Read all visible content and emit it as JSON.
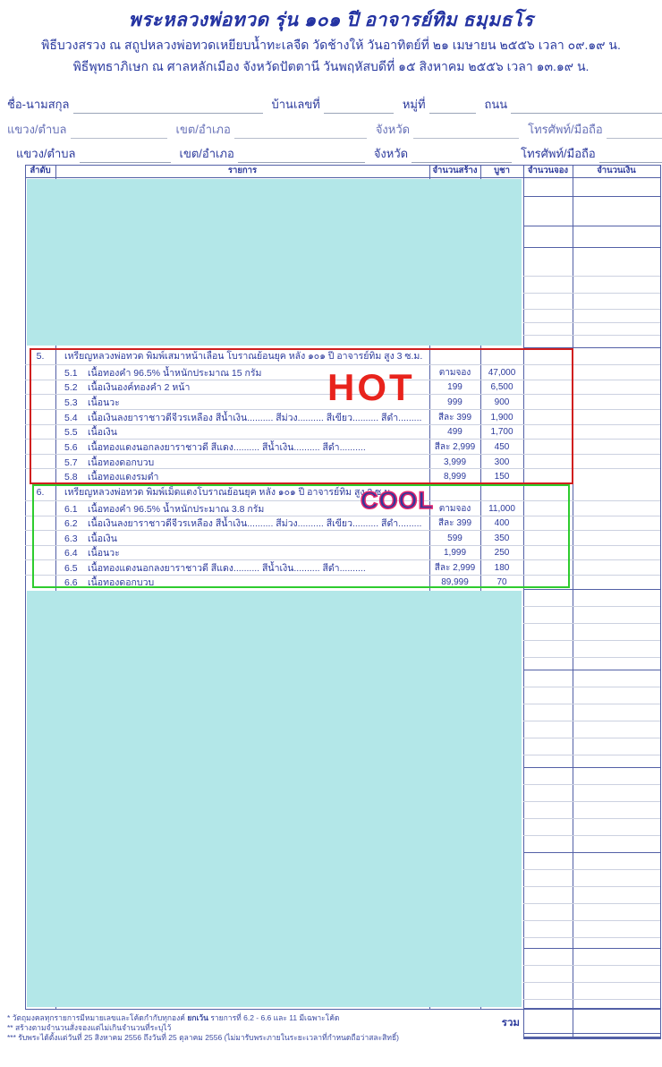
{
  "header": {
    "title": "พระหลวงพ่อทวด รุ่น ๑๐๑ ปี อาจารย์ทิม ธมฺมธโร",
    "ceremony1": "พิธีบวงสรวง ณ สถูปหลวงพ่อทวดเหยียบน้ำทะเลจืด วัดช้างให้   วันอาทิตย์ที่ ๒๑ เมษายน ๒๕๕๖  เวลา ๐๙.๑๙ น.",
    "ceremony2": "พิธีพุทธาภิเษก ณ ศาลหลักเมือง จังหวัดปัตตานี   วันพฤหัสบดีที่ ๑๕ สิงหาคม ๒๕๕๖  เวลา ๑๓.๑๙ น."
  },
  "form": {
    "row1": [
      "ชื่อ-นามสกุล",
      "บ้านเลขที่",
      "หมู่ที่",
      "ถนน"
    ],
    "row2": [
      "แขวง/ตำบล",
      "เขต/อำเภอ",
      "จังหวัด",
      "โทรศัพท์/มือถือ"
    ],
    "row3": [
      "แขวง/ตำบล",
      "เขต/อำเภอ",
      "จังหวัด",
      "โทรศัพท์/มือถือ"
    ]
  },
  "table": {
    "columns": [
      "ลำดับ",
      "รายการ",
      "จำนวนสร้าง",
      "บูชา",
      "จำนวนจอง",
      "จำนวนเงิน"
    ],
    "sections": [
      {
        "no": "5.",
        "title": "เหรียญหลวงพ่อทวด พิมพ์เสมาหน้าเลื่อน โบราณย้อนยุค หลัง ๑๐๑ ปี อาจารย์ทิม สูง 3 ซ.ม.",
        "badge": "HOT",
        "items": [
          {
            "no": "5.1",
            "desc": "เนื้อทองคำ 96.5% น้ำหนักประมาณ 15 กรัม",
            "made": "ตามจอง",
            "price": "47,000"
          },
          {
            "no": "5.2",
            "desc": "เนื้อเงินองค์ทองคำ 2 หน้า",
            "made": "199",
            "price": "6,500"
          },
          {
            "no": "5.3",
            "desc": "เนื้อนวะ",
            "made": "999",
            "price": "900"
          },
          {
            "no": "5.4",
            "desc": "เนื้อเงินลงยาราชาวดีจีวรเหลือง สีน้ำเงิน.......... สีม่วง.......... สีเขียว.......... สีดำ..........",
            "made": "สีละ 399",
            "price": "1,900"
          },
          {
            "no": "5.5",
            "desc": "เนื้อเงิน",
            "made": "499",
            "price": "1,700"
          },
          {
            "no": "5.6",
            "desc": "เนื้อทองแดงนอกลงยาราชาวดี สีแดง.......... สีน้ำเงิน.......... สีดำ..........",
            "made": "สีละ 2,999",
            "price": "450"
          },
          {
            "no": "5.7",
            "desc": "เนื้อทองดอกบวบ",
            "made": "3,999",
            "price": "300"
          },
          {
            "no": "5.8",
            "desc": "เนื้อทองแดงรมดำ",
            "made": "8,999",
            "price": "150"
          }
        ]
      },
      {
        "no": "6.",
        "title": "เหรียญหลวงพ่อทวด พิมพ์เม็ดแตงโบราณย้อนยุค หลัง ๑๐๑ ปี อาจารย์ทิม สูง 2 ซ.ม.",
        "badge": "COOL",
        "items": [
          {
            "no": "6.1",
            "desc": "เนื้อทองคำ 96.5% น้ำหนักประมาณ 3.8 กรัม",
            "made": "ตามจอง",
            "price": "11,000"
          },
          {
            "no": "6.2",
            "desc": "เนื้อเงินลงยาราชาวดีจีวรเหลือง สีน้ำเงิน.......... สีม่วง.......... สีเขียว.......... สีดำ..........",
            "made": "สีละ 399",
            "price": "400"
          },
          {
            "no": "6.3",
            "desc": "เนื้อเงิน",
            "made": "599",
            "price": "350"
          },
          {
            "no": "6.4",
            "desc": "เนื้อนวะ",
            "made": "1,999",
            "price": "250"
          },
          {
            "no": "6.5",
            "desc": "เนื้อทองแดงนอกลงยาราชาวดี สีแดง.......... สีน้ำเงิน.......... สีดำ..........",
            "made": "สีละ 2,999",
            "price": "180"
          },
          {
            "no": "6.6",
            "desc": "เนื้อทองดอกบวบ",
            "made": "89,999",
            "price": "70"
          }
        ]
      }
    ],
    "total_label": "รวม"
  },
  "footnotes": {
    "n1_pre": "* วัตถุมงคลทุกรายการมีหมายเลขและโค้ดกำกับทุกองค์ ",
    "n1_bold": "ยกเว้น",
    "n1_post": " รายการที่ 6.2 - 6.6 และ 11 มีเฉพาะโค้ด",
    "n2": "** สร้างตามจำนวนสั่งจองแต่ไม่เกินจำนวนที่ระบุไว้",
    "n3": "*** รับพระได้ตั้งแต่วันที่ 25 สิงหาคม 2556 ถึงวันที่ 25 ตุลาคม 2556 (ไม่มารับพระภายในระยะเวลาที่กำหนดถือว่าสละสิทธิ์)"
  },
  "colors": {
    "ink": "#2c3a9c",
    "table_border": "#5360a6",
    "row_line": "#ccd1e0",
    "mask_cyan": "#b3e7e8",
    "hot_red": "#e8231c",
    "cool_fill": "#31399b",
    "cool_outline": "#e0256e",
    "red_box": "#d01f1f",
    "green_box": "#2ecc2e"
  }
}
